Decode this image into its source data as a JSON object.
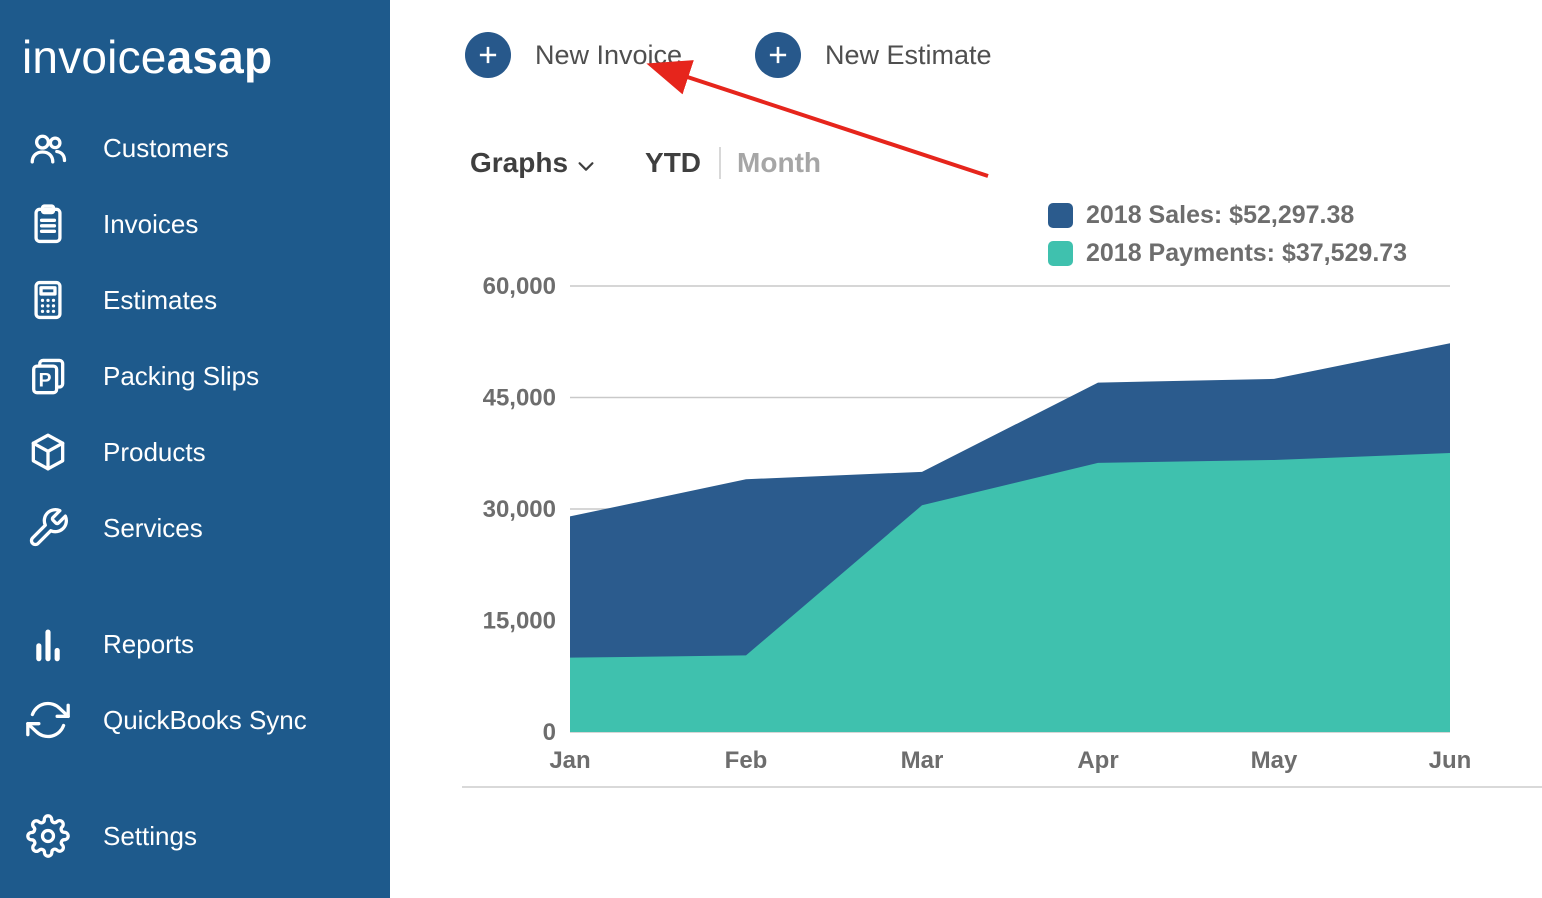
{
  "app_title": "invoiceASAP Dashboard",
  "colors": {
    "sidebar_bg": "#1e5a8c",
    "accent_blue": "#27588b",
    "sales_color": "#2b5b8d",
    "payments_color": "#3fc1ae",
    "grid_line": "#c9c9c9",
    "axis_text": "#6d6d6d",
    "separator": "#d9d9d9",
    "arrow_red": "#e6251c"
  },
  "sidebar": {
    "logo_part1": "invoice",
    "logo_part2": "asap",
    "groups": [
      {
        "items": [
          {
            "label": "Customers",
            "icon": "customers-icon"
          },
          {
            "label": "Invoices",
            "icon": "invoices-icon"
          },
          {
            "label": "Estimates",
            "icon": "estimates-icon"
          },
          {
            "label": "Packing Slips",
            "icon": "packing-slips-icon"
          },
          {
            "label": "Products",
            "icon": "products-icon"
          },
          {
            "label": "Services",
            "icon": "services-icon"
          }
        ]
      },
      {
        "items": [
          {
            "label": "Reports",
            "icon": "reports-icon"
          },
          {
            "label": "QuickBooks Sync",
            "icon": "quickbooks-sync-icon"
          }
        ]
      },
      {
        "items": [
          {
            "label": "Settings",
            "icon": "settings-icon"
          }
        ]
      }
    ]
  },
  "header": {
    "new_invoice_label": "New Invoice",
    "new_estimate_label": "New Estimate"
  },
  "toolbar": {
    "graphs_label": "Graphs",
    "ytd_label": "YTD",
    "month_label": "Month",
    "active_tab": "YTD"
  },
  "legend": [
    {
      "label": "2018 Sales: $52,297.38",
      "color": "#2b5b8d"
    },
    {
      "label": "2018 Payments: $37,529.73",
      "color": "#3fc1ae"
    }
  ],
  "chart_data": {
    "type": "area",
    "title": "",
    "xlabel": "",
    "ylabel": "",
    "categories": [
      "Jan",
      "Feb",
      "Mar",
      "Apr",
      "May",
      "Jun"
    ],
    "series": [
      {
        "name": "2018 Sales",
        "color": "#2b5b8d",
        "values": [
          29000,
          34000,
          35000,
          47000,
          47500,
          52297.38
        ]
      },
      {
        "name": "2018 Payments",
        "color": "#3fc1ae",
        "values": [
          10000,
          10300,
          30500,
          36200,
          36600,
          37529.73
        ]
      }
    ],
    "ylim": [
      0,
      60000
    ],
    "yticks": [
      0,
      15000,
      30000,
      45000,
      60000
    ],
    "ytick_labels": [
      "0",
      "15,000",
      "30,000",
      "45,000",
      "60,000"
    ],
    "grid": true,
    "legend_position": "top-right"
  },
  "annotation": {
    "type": "arrow",
    "target": "New Invoice"
  }
}
